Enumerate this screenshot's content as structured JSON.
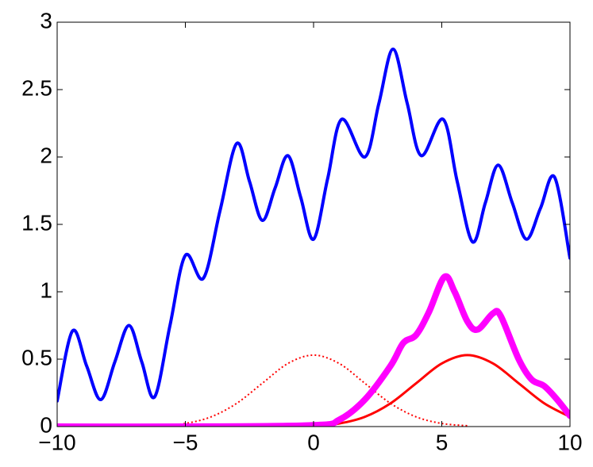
{
  "chart_data": {
    "type": "line",
    "xlim": [
      -10,
      10
    ],
    "ylim": [
      0,
      3
    ],
    "xticks": [
      {
        "value": -10,
        "label": "−10"
      },
      {
        "value": -5,
        "label": "−5"
      },
      0,
      5,
      10
    ],
    "yticks": [
      0,
      0.5,
      1,
      1.5,
      2,
      2.5,
      3
    ],
    "series": [
      {
        "color": "#0000ff",
        "width": 4,
        "dash": "solid",
        "x": [
          -10,
          -9.4,
          -8.85,
          -8.3,
          -7.75,
          -7.2,
          -6.7,
          -6.2,
          -5.6,
          -5,
          -4.3,
          -3.65,
          -3,
          -2.5,
          -2,
          -1.5,
          -1,
          -0.5,
          0,
          0.55,
          1.1,
          2,
          2.55,
          3.1,
          3.65,
          4.2,
          5.05,
          5.6,
          6.2,
          6.7,
          7.2,
          7.75,
          8.3,
          8.85,
          9.4,
          10
        ],
        "values": [
          0.19,
          0.71,
          0.45,
          0.2,
          0.48,
          0.75,
          0.48,
          0.22,
          0.75,
          1.27,
          1.1,
          1.6,
          2.1,
          1.82,
          1.53,
          1.77,
          2.01,
          1.7,
          1.39,
          1.84,
          2.28,
          2.0,
          2.4,
          2.8,
          2.4,
          2.01,
          2.28,
          1.82,
          1.37,
          1.66,
          1.94,
          1.66,
          1.39,
          1.62,
          1.85,
          1.25
        ]
      },
      {
        "color": "#ff0000",
        "width": 2,
        "dash": "dotted",
        "x": [
          -6,
          -5,
          -4,
          -3,
          -2,
          -1,
          0,
          1,
          2,
          3,
          4,
          5,
          6
        ],
        "values": [
          0.006,
          0.023,
          0.072,
          0.172,
          0.321,
          0.468,
          0.53,
          0.468,
          0.321,
          0.172,
          0.072,
          0.023,
          0.006
        ]
      },
      {
        "color": "#ff0000",
        "width": 3,
        "dash": "solid",
        "x": [
          0,
          1,
          2,
          3,
          4,
          5,
          6,
          7,
          8,
          9,
          10
        ],
        "values": [
          0.006,
          0.023,
          0.072,
          0.172,
          0.321,
          0.468,
          0.53,
          0.468,
          0.321,
          0.172,
          0.072
        ]
      },
      {
        "color": "#ff00ff",
        "width": 8,
        "dash": "solid",
        "x": [
          -10,
          -5,
          0,
          1,
          2,
          3,
          3.5,
          4,
          4.5,
          5.1,
          5.5,
          6,
          6.4,
          7,
          7.3,
          8,
          8.5,
          9,
          9.5,
          10
        ],
        "values": [
          0,
          0,
          0.01,
          0.05,
          0.2,
          0.45,
          0.62,
          0.68,
          0.85,
          1.11,
          1.0,
          0.78,
          0.72,
          0.84,
          0.82,
          0.5,
          0.35,
          0.3,
          0.2,
          0.08
        ]
      }
    ]
  }
}
